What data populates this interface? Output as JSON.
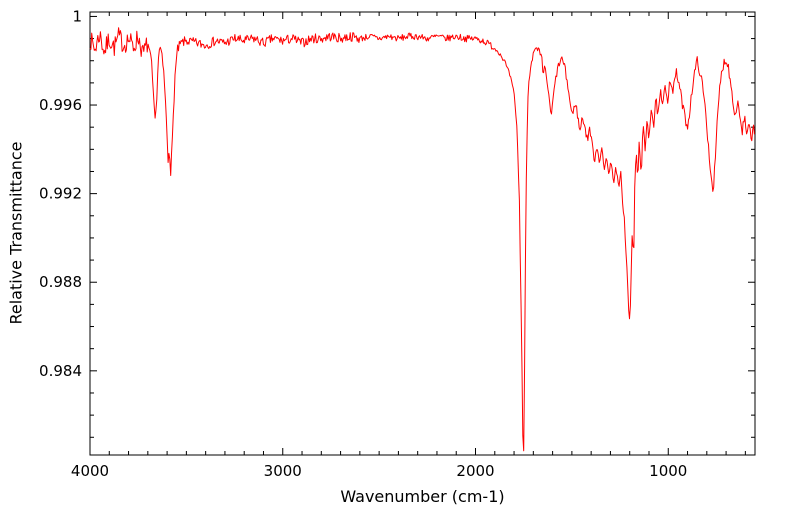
{
  "chart_data": {
    "type": "line",
    "title": "",
    "xlabel": "Wavenumber (cm-1)",
    "ylabel": "Relative Transmittance",
    "x_reversed": true,
    "grid": false,
    "legend": null,
    "xlim": [
      4000,
      550
    ],
    "ylim": [
      0.9802,
      1.0002
    ],
    "line_color": "#ff0000",
    "axis_color": "#000000",
    "x_ticks": [
      {
        "v": 4000,
        "label": "4000"
      },
      {
        "v": 3000,
        "label": "3000"
      },
      {
        "v": 2000,
        "label": "2000"
      },
      {
        "v": 1000,
        "label": "1000"
      }
    ],
    "y_ticks": [
      {
        "v": 0.984,
        "label": "0.984"
      },
      {
        "v": 0.988,
        "label": "0.988"
      },
      {
        "v": 0.992,
        "label": "0.992"
      },
      {
        "v": 0.996,
        "label": "0.996"
      },
      {
        "v": 1.0,
        "label": "1"
      }
    ],
    "x_minor_step": 100,
    "y_minor_step": 0.001,
    "noise": {
      "seed": 7,
      "step": 4.5,
      "regions": [
        {
          "from": 4000,
          "to": 3700,
          "amp": 0.00045
        },
        {
          "from": 3700,
          "to": 3520,
          "amp": 0.00025
        },
        {
          "from": 3520,
          "to": 2600,
          "amp": 0.00022
        },
        {
          "from": 2600,
          "to": 1900,
          "amp": 0.00015
        },
        {
          "from": 1900,
          "to": 1730,
          "amp": 0.0001
        },
        {
          "from": 1730,
          "to": 1250,
          "amp": 0.00018
        },
        {
          "from": 1250,
          "to": 1130,
          "amp": 0.0003
        },
        {
          "from": 1130,
          "to": 550,
          "amp": 0.00022
        }
      ]
    },
    "series": [
      {
        "name": "spectrum",
        "points": [
          [
            4000,
            0.999
          ],
          [
            3975,
            0.9985
          ],
          [
            3950,
            0.9992
          ],
          [
            3925,
            0.9984
          ],
          [
            3900,
            0.999
          ],
          [
            3875,
            0.9986
          ],
          [
            3850,
            0.9991
          ],
          [
            3825,
            0.9987
          ],
          [
            3800,
            0.999
          ],
          [
            3775,
            0.9986
          ],
          [
            3750,
            0.9991
          ],
          [
            3725,
            0.9983
          ],
          [
            3700,
            0.9988
          ],
          [
            3680,
            0.9978
          ],
          [
            3668,
            0.9958
          ],
          [
            3660,
            0.9952
          ],
          [
            3652,
            0.9968
          ],
          [
            3645,
            0.9982
          ],
          [
            3635,
            0.9986
          ],
          [
            3625,
            0.998
          ],
          [
            3615,
            0.9972
          ],
          [
            3605,
            0.9955
          ],
          [
            3595,
            0.9935
          ],
          [
            3588,
            0.9942
          ],
          [
            3582,
            0.993
          ],
          [
            3575,
            0.9938
          ],
          [
            3568,
            0.9955
          ],
          [
            3558,
            0.9975
          ],
          [
            3545,
            0.9985
          ],
          [
            3525,
            0.9988
          ],
          [
            3500,
            0.9989
          ],
          [
            3450,
            0.9988
          ],
          [
            3400,
            0.9987
          ],
          [
            3350,
            0.9989
          ],
          [
            3300,
            0.9988
          ],
          [
            3250,
            0.999
          ],
          [
            3200,
            0.9989
          ],
          [
            3150,
            0.999
          ],
          [
            3100,
            0.9988
          ],
          [
            3050,
            0.999
          ],
          [
            3000,
            0.9989
          ],
          [
            2950,
            0.999
          ],
          [
            2900,
            0.9988
          ],
          [
            2850,
            0.999
          ],
          [
            2800,
            0.999
          ],
          [
            2750,
            0.9991
          ],
          [
            2700,
            0.999
          ],
          [
            2650,
            0.9991
          ],
          [
            2600,
            0.999
          ],
          [
            2550,
            0.9991
          ],
          [
            2500,
            0.999
          ],
          [
            2450,
            0.9991
          ],
          [
            2400,
            0.999
          ],
          [
            2350,
            0.9991
          ],
          [
            2300,
            0.9991
          ],
          [
            2250,
            0.999
          ],
          [
            2200,
            0.9991
          ],
          [
            2150,
            0.999
          ],
          [
            2100,
            0.9991
          ],
          [
            2050,
            0.999
          ],
          [
            2000,
            0.999
          ],
          [
            1960,
            0.9989
          ],
          [
            1920,
            0.9987
          ],
          [
            1880,
            0.9984
          ],
          [
            1850,
            0.998
          ],
          [
            1820,
            0.9973
          ],
          [
            1800,
            0.9965
          ],
          [
            1785,
            0.995
          ],
          [
            1772,
            0.9915
          ],
          [
            1762,
            0.986
          ],
          [
            1754,
            0.9808
          ],
          [
            1749,
            0.9803
          ],
          [
            1743,
            0.987
          ],
          [
            1735,
            0.994
          ],
          [
            1726,
            0.9968
          ],
          [
            1715,
            0.9978
          ],
          [
            1700,
            0.9983
          ],
          [
            1685,
            0.9985
          ],
          [
            1670,
            0.9984
          ],
          [
            1655,
            0.998
          ],
          [
            1648,
            0.9972
          ],
          [
            1640,
            0.9978
          ],
          [
            1630,
            0.9972
          ],
          [
            1618,
            0.9962
          ],
          [
            1606,
            0.9955
          ],
          [
            1595,
            0.9965
          ],
          [
            1580,
            0.9974
          ],
          [
            1565,
            0.9979
          ],
          [
            1550,
            0.9981
          ],
          [
            1535,
            0.9976
          ],
          [
            1520,
            0.9968
          ],
          [
            1508,
            0.996
          ],
          [
            1495,
            0.9955
          ],
          [
            1482,
            0.9962
          ],
          [
            1470,
            0.9955
          ],
          [
            1458,
            0.9948
          ],
          [
            1445,
            0.9955
          ],
          [
            1432,
            0.995
          ],
          [
            1420,
            0.9944
          ],
          [
            1408,
            0.995
          ],
          [
            1395,
            0.9942
          ],
          [
            1382,
            0.9935
          ],
          [
            1370,
            0.9942
          ],
          [
            1358,
            0.9935
          ],
          [
            1345,
            0.994
          ],
          [
            1332,
            0.993
          ],
          [
            1320,
            0.9938
          ],
          [
            1308,
            0.9928
          ],
          [
            1295,
            0.9935
          ],
          [
            1282,
            0.9925
          ],
          [
            1270,
            0.9932
          ],
          [
            1258,
            0.9922
          ],
          [
            1246,
            0.9928
          ],
          [
            1234,
            0.9915
          ],
          [
            1222,
            0.99
          ],
          [
            1212,
            0.988
          ],
          [
            1204,
            0.9865
          ],
          [
            1198,
            0.9862
          ],
          [
            1192,
            0.9885
          ],
          [
            1186,
            0.9905
          ],
          [
            1180,
            0.989
          ],
          [
            1174,
            0.992
          ],
          [
            1166,
            0.994
          ],
          [
            1158,
            0.9925
          ],
          [
            1150,
            0.9945
          ],
          [
            1140,
            0.993
          ],
          [
            1130,
            0.995
          ],
          [
            1120,
            0.9938
          ],
          [
            1110,
            0.9955
          ],
          [
            1100,
            0.9945
          ],
          [
            1088,
            0.996
          ],
          [
            1076,
            0.995
          ],
          [
            1064,
            0.9962
          ],
          [
            1052,
            0.9955
          ],
          [
            1040,
            0.9966
          ],
          [
            1028,
            0.9958
          ],
          [
            1016,
            0.997
          ],
          [
            1004,
            0.9962
          ],
          [
            990,
            0.9972
          ],
          [
            975,
            0.9966
          ],
          [
            960,
            0.9975
          ],
          [
            945,
            0.997
          ],
          [
            930,
            0.9962
          ],
          [
            915,
            0.9955
          ],
          [
            900,
            0.995
          ],
          [
            888,
            0.9958
          ],
          [
            875,
            0.9968
          ],
          [
            862,
            0.9975
          ],
          [
            850,
            0.998
          ],
          [
            838,
            0.9976
          ],
          [
            825,
            0.997
          ],
          [
            812,
            0.9962
          ],
          [
            800,
            0.995
          ],
          [
            788,
            0.9938
          ],
          [
            776,
            0.9926
          ],
          [
            766,
            0.9922
          ],
          [
            756,
            0.9935
          ],
          [
            746,
            0.9952
          ],
          [
            736,
            0.9965
          ],
          [
            724,
            0.9974
          ],
          [
            712,
            0.9979
          ],
          [
            700,
            0.9981
          ],
          [
            688,
            0.9977
          ],
          [
            676,
            0.997
          ],
          [
            664,
            0.9962
          ],
          [
            652,
            0.9955
          ],
          [
            640,
            0.9962
          ],
          [
            628,
            0.9955
          ],
          [
            616,
            0.9948
          ],
          [
            604,
            0.9955
          ],
          [
            592,
            0.9945
          ],
          [
            580,
            0.9952
          ],
          [
            568,
            0.9942
          ],
          [
            558,
            0.995
          ],
          [
            550,
            0.9944
          ]
        ]
      }
    ]
  }
}
